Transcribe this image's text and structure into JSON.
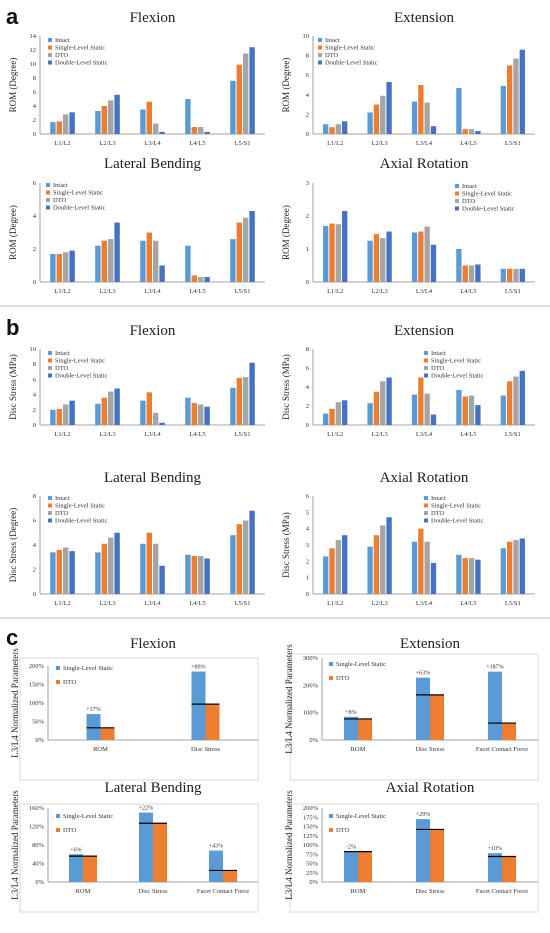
{
  "section_labels": [
    "a",
    "b",
    "c"
  ],
  "chart_data": [
    {
      "type": "bar",
      "section": "a",
      "title": "Flexion",
      "ylabel": "ROM (Degree)",
      "ylim": [
        0,
        14
      ],
      "yticks": [
        0,
        2,
        4,
        6,
        8,
        10,
        12,
        14
      ],
      "categories": [
        "L1/L2",
        "L2/L3",
        "L3/L4",
        "L4/L5",
        "L5/S1"
      ],
      "series": [
        {
          "name": "Intact",
          "values": [
            1.7,
            3.3,
            3.5,
            5.0,
            7.6
          ]
        },
        {
          "name": "Single-Level Static",
          "values": [
            1.8,
            4.0,
            4.6,
            1.0,
            9.9
          ]
        },
        {
          "name": "DTO",
          "values": [
            2.8,
            4.8,
            1.5,
            1.0,
            11.5
          ]
        },
        {
          "name": "Double-Level Static",
          "values": [
            3.1,
            5.6,
            0.3,
            0.3,
            12.4
          ]
        }
      ],
      "legend": "top-left"
    },
    {
      "type": "bar",
      "section": "a",
      "title": "Extension",
      "ylabel": "ROM (Degree)",
      "ylim": [
        0,
        10
      ],
      "yticks": [
        0,
        2,
        4,
        6,
        8,
        10
      ],
      "categories": [
        "L1/L2",
        "L2/L3",
        "L3/L4",
        "L4/L5",
        "L5/S1"
      ],
      "series": [
        {
          "name": "Intact",
          "values": [
            1.0,
            2.2,
            3.3,
            4.7,
            4.9
          ]
        },
        {
          "name": "Single-Level Static",
          "values": [
            0.7,
            3.0,
            5.0,
            0.5,
            7.0
          ]
        },
        {
          "name": "DTO",
          "values": [
            1.0,
            3.9,
            3.2,
            0.5,
            7.7
          ]
        },
        {
          "name": "Double-Level Static",
          "values": [
            1.3,
            5.3,
            0.8,
            0.3,
            8.6
          ]
        }
      ],
      "legend": "top-left"
    },
    {
      "type": "bar",
      "section": "a",
      "title": "Lateral Bending",
      "ylabel": "ROM (Degree)",
      "ylim": [
        0,
        6
      ],
      "yticks": [
        0,
        2,
        4,
        6
      ],
      "categories": [
        "L1/L2",
        "L2/L3",
        "L3/L4",
        "L4/L5",
        "L5/S1"
      ],
      "series": [
        {
          "name": "Intact",
          "values": [
            1.7,
            2.2,
            2.5,
            2.2,
            2.6
          ]
        },
        {
          "name": "Single-Level Static",
          "values": [
            1.7,
            2.5,
            3.0,
            0.4,
            3.6
          ]
        },
        {
          "name": "DTO",
          "values": [
            1.8,
            2.6,
            2.5,
            0.3,
            3.9
          ]
        },
        {
          "name": "Double-Level Static",
          "values": [
            1.9,
            3.6,
            1.0,
            0.3,
            4.3
          ]
        }
      ],
      "legend": "top-left"
    },
    {
      "type": "bar",
      "section": "a",
      "title": "Axial Rotation",
      "ylabel": "ROM (Degree)",
      "ylim": [
        0,
        3
      ],
      "yticks": [
        0,
        1,
        2,
        3
      ],
      "categories": [
        "L1/L2",
        "L2/L3",
        "L3/L4",
        "L4/L5",
        "L5/S1"
      ],
      "series": [
        {
          "name": "Intact",
          "values": [
            1.7,
            1.25,
            1.5,
            1.0,
            0.4
          ]
        },
        {
          "name": "Single-Level Static",
          "values": [
            1.77,
            1.45,
            1.53,
            0.5,
            0.4
          ]
        },
        {
          "name": "DTO",
          "values": [
            1.75,
            1.33,
            1.68,
            0.5,
            0.4
          ]
        },
        {
          "name": "Double-Level Static",
          "values": [
            2.15,
            1.53,
            1.13,
            0.53,
            0.4
          ]
        }
      ],
      "legend": "top-right"
    },
    {
      "type": "bar",
      "section": "b",
      "title": "Flexion",
      "ylabel": "Disc Stress (MPa)",
      "ylim": [
        0,
        10
      ],
      "yticks": [
        0,
        2,
        4,
        6,
        8,
        10
      ],
      "categories": [
        "L1/L2",
        "L2/L3",
        "L3/L4",
        "L4/L5",
        "L5/S1"
      ],
      "series": [
        {
          "name": "Intact",
          "values": [
            2.0,
            2.8,
            3.2,
            3.6,
            4.9
          ]
        },
        {
          "name": "Single-Level Static",
          "values": [
            2.1,
            3.6,
            4.3,
            2.9,
            6.2
          ]
        },
        {
          "name": "DTO",
          "values": [
            2.7,
            4.4,
            1.6,
            2.7,
            6.3
          ]
        },
        {
          "name": "Double-Level Static",
          "values": [
            3.2,
            4.8,
            0.3,
            2.4,
            8.2
          ]
        }
      ],
      "legend": "top-left"
    },
    {
      "type": "bar",
      "section": "b",
      "title": "Extension",
      "ylabel": "Disc Stress (MPa)",
      "ylim": [
        0,
        8
      ],
      "yticks": [
        0,
        2,
        4,
        6,
        8
      ],
      "categories": [
        "L1/L2",
        "L2/L3",
        "L3/L4",
        "L4/L5",
        "L5/S1"
      ],
      "series": [
        {
          "name": "Intact",
          "values": [
            1.2,
            2.3,
            3.2,
            3.7,
            3.1
          ]
        },
        {
          "name": "Single-Level Static",
          "values": [
            1.7,
            3.5,
            5.0,
            3.0,
            4.6
          ]
        },
        {
          "name": "DTO",
          "values": [
            2.4,
            4.6,
            3.3,
            3.1,
            5.1
          ]
        },
        {
          "name": "Double-Level Static",
          "values": [
            2.6,
            5.0,
            1.1,
            2.1,
            5.7
          ]
        }
      ],
      "legend": "top-right"
    },
    {
      "type": "bar",
      "section": "b",
      "title": "Lateral Bending",
      "ylabel": "Disc Stress (Degree)",
      "ylim": [
        0,
        8
      ],
      "yticks": [
        0,
        2,
        4,
        6,
        8
      ],
      "categories": [
        "L1/L2",
        "L2/L3",
        "L3/L4",
        "L4/L5",
        "L5/S1"
      ],
      "series": [
        {
          "name": "Intact",
          "values": [
            3.4,
            3.4,
            4.1,
            3.2,
            4.8
          ]
        },
        {
          "name": "Single-Level Static",
          "values": [
            3.6,
            4.1,
            5.0,
            3.1,
            5.7
          ]
        },
        {
          "name": "DTO",
          "values": [
            3.8,
            4.6,
            4.1,
            3.1,
            6.0
          ]
        },
        {
          "name": "Double-Level Static",
          "values": [
            3.5,
            5.0,
            2.3,
            2.9,
            6.8
          ]
        }
      ],
      "legend": "top-left"
    },
    {
      "type": "bar",
      "section": "b",
      "title": "Axial Rotation",
      "ylabel": "Disc Stress (MPa)",
      "ylim": [
        0,
        6
      ],
      "yticks": [
        0,
        1,
        2,
        3,
        4,
        5,
        6
      ],
      "categories": [
        "L1/L2",
        "L2/L3",
        "L3/L4",
        "L4/L5",
        "L5/S1"
      ],
      "series": [
        {
          "name": "Intact",
          "values": [
            2.3,
            2.9,
            3.2,
            2.4,
            2.8
          ]
        },
        {
          "name": "Single-Level Static",
          "values": [
            2.8,
            3.6,
            4.0,
            2.2,
            3.2
          ]
        },
        {
          "name": "DTO",
          "values": [
            3.3,
            4.2,
            3.2,
            2.2,
            3.3
          ]
        },
        {
          "name": "Double-Level Static",
          "values": [
            3.6,
            4.7,
            1.9,
            2.1,
            3.4
          ]
        }
      ],
      "legend": "top-right"
    },
    {
      "type": "bar",
      "section": "c",
      "title": "Flexion",
      "ylabel": "L3/L4 Normalized Parameters",
      "ylim": [
        0,
        200
      ],
      "yticks": [
        0,
        50,
        100,
        150,
        200
      ],
      "tick_suffix": "%",
      "categories": [
        "ROM",
        "Disc Stress"
      ],
      "series": [
        {
          "name": "Single-Level Static",
          "values": [
            70,
            185
          ]
        },
        {
          "name": "DTO",
          "values": [
            33,
            97
          ]
        }
      ],
      "reference_values": [
        33,
        97
      ],
      "annotations": [
        "+37%",
        "+89%"
      ],
      "legend": "top-left"
    },
    {
      "type": "bar",
      "section": "c",
      "title": "Extension",
      "ylabel": "L3/L4 Normalized Parameters",
      "ylim": [
        0,
        300
      ],
      "yticks": [
        0,
        100,
        200,
        300
      ],
      "tick_suffix": "%",
      "categories": [
        "ROM",
        "Disc Stress",
        "Facet Contact Force"
      ],
      "series": [
        {
          "name": "Single-Level Static",
          "values": [
            85,
            228,
            250
          ]
        },
        {
          "name": "DTO",
          "values": [
            77,
            165,
            62
          ]
        }
      ],
      "reference_values": [
        77,
        165,
        62
      ],
      "annotations": [
        "+8%",
        "+63%",
        "+187%"
      ],
      "legend": "top-left"
    },
    {
      "type": "bar",
      "section": "c",
      "title": "Lateral Bending",
      "ylabel": "L3/L4 Normalized Parameters",
      "ylim": [
        0,
        160
      ],
      "yticks": [
        0,
        40,
        80,
        120,
        160
      ],
      "tick_suffix": "%",
      "categories": [
        "ROM",
        "Disc Stress",
        "Facet Contact Force"
      ],
      "series": [
        {
          "name": "Single-Level Static",
          "values": [
            60,
            150,
            68
          ]
        },
        {
          "name": "DTO",
          "values": [
            56,
            127,
            25
          ]
        }
      ],
      "reference_values": [
        56,
        127,
        25
      ],
      "annotations": [
        "+6%",
        "+22%",
        "+43%"
      ],
      "legend": "top-left"
    },
    {
      "type": "bar",
      "section": "c",
      "title": "Axial Rotation",
      "ylabel": "L3/L4 Normalized Parameters",
      "ylim": [
        0,
        200
      ],
      "yticks": [
        0,
        25,
        50,
        75,
        100,
        125,
        150,
        175,
        200
      ],
      "tick_suffix": "%",
      "categories": [
        "ROM",
        "Disc Stress",
        "Facet Contact Force"
      ],
      "series": [
        {
          "name": "Single-Level Static",
          "values": [
            82,
            170,
            78
          ]
        },
        {
          "name": "DTO",
          "values": [
            82,
            142,
            69
          ]
        }
      ],
      "reference_values": [
        82,
        142,
        69
      ],
      "annotations": [
        "-2%",
        "+29%",
        "+10%"
      ],
      "legend": "top-left"
    }
  ],
  "colors": {
    "series_ab": [
      "#5b9bd5",
      "#ed7d31",
      "#a5a5a5",
      "#4472c4"
    ],
    "series_c": [
      "#5b9bd5",
      "#ed7d31"
    ],
    "reference_line": "#000000",
    "frame": "#d0d0d0",
    "separator": "#bfbfbf"
  }
}
